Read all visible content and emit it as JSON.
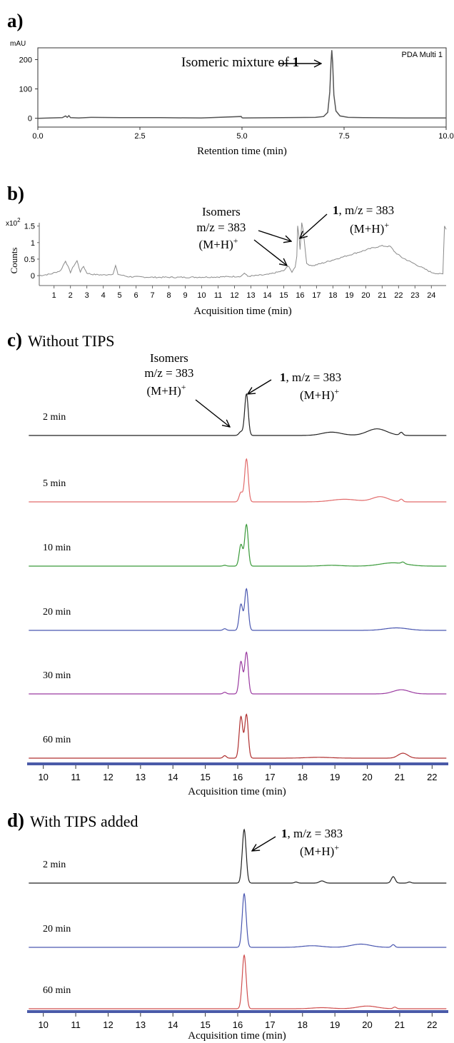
{
  "panels": {
    "a": {
      "letter": "a)",
      "heading": "",
      "y_unit": "mAU",
      "legend": "PDA Multi 1",
      "xlabel": "Retention time (min)",
      "annotation": {
        "prefix": "Isomeric mixture of ",
        "bold": "1"
      }
    },
    "b": {
      "letter": "b)",
      "heading": "",
      "y_exponent_base": "x10",
      "y_exponent_power": "2",
      "ylabel": "Counts",
      "xlabel": "Acquisition time (min)",
      "annotation_isomers": {
        "line1": "Isomers",
        "line2": "m/z = 383",
        "line3": "(M+H)",
        "sup": "+"
      },
      "annotation_main": {
        "bold": "1",
        "line1": ",  m/z = 383",
        "line2": "(M+H)",
        "sup": "+"
      }
    },
    "c": {
      "letter": "c)",
      "heading": "Without TIPS",
      "xlabel": "Acquisition time (min)",
      "annotation_isomers": {
        "line1": "Isomers",
        "line2": "m/z = 383",
        "line3": "(M+H)",
        "sup": "+"
      },
      "annotation_main": {
        "bold": "1",
        "line1": ",  m/z = 383",
        "line2": "(M+H)",
        "sup": "+"
      },
      "trace_labels": [
        "2 min",
        "5 min",
        "10 min",
        "20 min",
        "30 min",
        "60 min"
      ]
    },
    "d": {
      "letter": "d)",
      "heading": "With TIPS added",
      "xlabel": "Acquisition time (min)",
      "annotation_main": {
        "bold": "1",
        "line1": ",  m/z = 383",
        "line2": "(M+H)",
        "sup": "+"
      },
      "trace_labels": [
        "2 min",
        "20 min",
        "60 min"
      ]
    }
  },
  "chart_data": [
    {
      "panel": "a",
      "type": "line",
      "xlabel": "Retention time (min)",
      "ylabel": "mAU",
      "xlim": [
        0,
        10
      ],
      "ylim": [
        -30,
        240
      ],
      "x_ticks": [
        0.0,
        2.5,
        5.0,
        7.5,
        10.0
      ],
      "x_tick_labels": [
        "0.0",
        "2.5",
        "5.0",
        "7.5",
        "10.0"
      ],
      "y_ticks": [
        0,
        100,
        200
      ],
      "y_tick_labels": [
        "0",
        "100",
        "200"
      ],
      "legend": "PDA Multi 1",
      "color": "#555555",
      "series": [
        {
          "name": "PDA Multi 1",
          "x": [
            0,
            0.6,
            0.68,
            0.72,
            0.76,
            0.8,
            1.0,
            1.3,
            2.0,
            3.0,
            4.0,
            4.98,
            5.0,
            5.02,
            6.0,
            6.8,
            7.0,
            7.1,
            7.15,
            7.18,
            7.2,
            7.22,
            7.25,
            7.3,
            7.4,
            7.6,
            8.0,
            9.0,
            10.0
          ],
          "y": [
            0,
            2,
            8,
            3,
            9,
            2,
            1,
            3,
            2,
            2,
            1,
            6,
            2,
            1,
            2,
            3,
            6,
            20,
            90,
            190,
            232,
            190,
            80,
            25,
            8,
            3,
            2,
            1,
            1
          ]
        }
      ]
    },
    {
      "panel": "b",
      "type": "line",
      "xlabel": "Acquisition time (min)",
      "ylabel": "Counts",
      "xlim": [
        0.1,
        24.9
      ],
      "ylim": [
        -0.3,
        1.6
      ],
      "x_ticks": [
        1,
        2,
        3,
        4,
        5,
        6,
        7,
        8,
        9,
        10,
        11,
        12,
        13,
        14,
        15,
        16,
        17,
        18,
        19,
        20,
        21,
        22,
        23,
        24
      ],
      "x_tick_labels": [
        "1",
        "2",
        "3",
        "4",
        "5",
        "6",
        "7",
        "8",
        "9",
        "10",
        "11",
        "12",
        "13",
        "14",
        "15",
        "16",
        "17",
        "18",
        "19",
        "20",
        "21",
        "22",
        "23",
        "24"
      ],
      "y_ticks": [
        0,
        0.5,
        1,
        1.5
      ],
      "y_tick_labels": [
        "0",
        "0.5",
        "1",
        "1.5"
      ],
      "color": "#8a8a8a",
      "series": [
        {
          "name": "",
          "x": [
            0.1,
            0.8,
            1.4,
            1.7,
            2.0,
            2.2,
            2.4,
            2.6,
            2.8,
            3.0,
            3.3,
            4.0,
            4.6,
            4.75,
            4.9,
            5.5,
            7.0,
            9.0,
            11.0,
            12.4,
            12.6,
            12.8,
            14.0,
            15.0,
            15.3,
            15.5,
            15.7,
            15.8,
            15.85,
            15.92,
            16.0,
            16.1,
            16.2,
            16.4,
            16.8,
            17.5,
            18.5,
            19.5,
            20.5,
            21.0,
            21.5,
            21.8,
            22.2,
            22.8,
            23.4,
            24.0,
            24.5,
            24.7,
            24.8,
            24.9
          ],
          "y": [
            0.0,
            0.05,
            0.15,
            0.45,
            0.1,
            0.3,
            0.45,
            0.12,
            0.28,
            0.08,
            0.04,
            0.02,
            0.05,
            0.3,
            0.04,
            -0.03,
            -0.05,
            -0.05,
            -0.04,
            -0.02,
            0.08,
            -0.02,
            0.03,
            0.15,
            0.3,
            0.1,
            0.25,
            0.6,
            1.5,
            1.25,
            0.8,
            1.6,
            1.35,
            0.35,
            0.3,
            0.4,
            0.55,
            0.7,
            0.85,
            0.9,
            0.88,
            0.7,
            0.55,
            0.4,
            0.25,
            0.1,
            0.05,
            0.05,
            1.5,
            1.4
          ]
        }
      ]
    },
    {
      "panel": "c",
      "type": "line",
      "xlabel": "Acquisition time (min)",
      "xlim": [
        9.5,
        22.5
      ],
      "x_ticks": [
        10,
        11,
        12,
        13,
        14,
        15,
        16,
        17,
        18,
        19,
        20,
        21,
        22
      ],
      "x_tick_labels": [
        "10",
        "11",
        "12",
        "13",
        "14",
        "15",
        "16",
        "17",
        "18",
        "19",
        "20",
        "21",
        "22"
      ],
      "series": [
        {
          "name": "2 min",
          "color": "#222222",
          "peaks": [
            [
              16.1,
              0.09,
              0.06
            ],
            [
              16.27,
              1.0,
              0.055
            ],
            [
              18.9,
              0.08,
              0.3
            ],
            [
              20.3,
              0.16,
              0.3
            ],
            [
              21.05,
              0.07,
              0.05
            ]
          ]
        },
        {
          "name": "5 min",
          "color": "#e26b6b",
          "peaks": [
            [
              16.1,
              0.22,
              0.055
            ],
            [
              16.27,
              1.0,
              0.055
            ],
            [
              19.3,
              0.06,
              0.4
            ],
            [
              20.4,
              0.12,
              0.25
            ],
            [
              21.05,
              0.06,
              0.05
            ]
          ]
        },
        {
          "name": "10 min",
          "color": "#3a9a3a",
          "peaks": [
            [
              15.6,
              0.02,
              0.05
            ],
            [
              16.1,
              0.52,
              0.055
            ],
            [
              16.27,
              1.0,
              0.055
            ],
            [
              18.9,
              0.02,
              0.3
            ],
            [
              20.8,
              0.08,
              0.4
            ],
            [
              21.1,
              0.04,
              0.05
            ]
          ]
        },
        {
          "name": "20 min",
          "color": "#4a57b0",
          "peaks": [
            [
              15.6,
              0.04,
              0.05
            ],
            [
              16.1,
              0.63,
              0.055
            ],
            [
              16.27,
              1.0,
              0.055
            ],
            [
              20.9,
              0.06,
              0.35
            ]
          ]
        },
        {
          "name": "30 min",
          "color": "#9a3aa0",
          "peaks": [
            [
              15.6,
              0.04,
              0.05
            ],
            [
              16.1,
              0.78,
              0.055
            ],
            [
              16.27,
              1.0,
              0.055
            ],
            [
              21.05,
              0.1,
              0.25
            ]
          ]
        },
        {
          "name": "60 min",
          "color": "#b03030",
          "peaks": [
            [
              15.6,
              0.06,
              0.05
            ],
            [
              16.1,
              1.0,
              0.055
            ],
            [
              16.27,
              1.05,
              0.055
            ],
            [
              18.5,
              0.02,
              0.4
            ],
            [
              21.1,
              0.12,
              0.15
            ]
          ]
        }
      ]
    },
    {
      "panel": "d",
      "type": "line",
      "xlabel": "Acquisition time (min)",
      "xlim": [
        9.5,
        22.5
      ],
      "x_ticks": [
        10,
        11,
        12,
        13,
        14,
        15,
        16,
        17,
        18,
        19,
        20,
        21,
        22
      ],
      "x_tick_labels": [
        "10",
        "11",
        "12",
        "13",
        "14",
        "15",
        "16",
        "17",
        "18",
        "19",
        "20",
        "21",
        "22"
      ],
      "series": [
        {
          "name": "2 min",
          "color": "#222222",
          "peaks": [
            [
              16.2,
              1.0,
              0.06
            ],
            [
              17.8,
              0.02,
              0.05
            ],
            [
              18.6,
              0.04,
              0.08
            ],
            [
              20.8,
              0.12,
              0.06
            ],
            [
              21.3,
              0.02,
              0.05
            ]
          ]
        },
        {
          "name": "20 min",
          "color": "#4a57b0",
          "peaks": [
            [
              16.2,
              1.0,
              0.06
            ],
            [
              18.3,
              0.03,
              0.3
            ],
            [
              19.8,
              0.06,
              0.3
            ],
            [
              20.8,
              0.05,
              0.05
            ]
          ]
        },
        {
          "name": "60 min",
          "color": "#d05050",
          "peaks": [
            [
              16.2,
              1.0,
              0.06
            ],
            [
              18.6,
              0.02,
              0.3
            ],
            [
              20.0,
              0.05,
              0.3
            ],
            [
              20.85,
              0.03,
              0.05
            ]
          ]
        }
      ]
    }
  ]
}
